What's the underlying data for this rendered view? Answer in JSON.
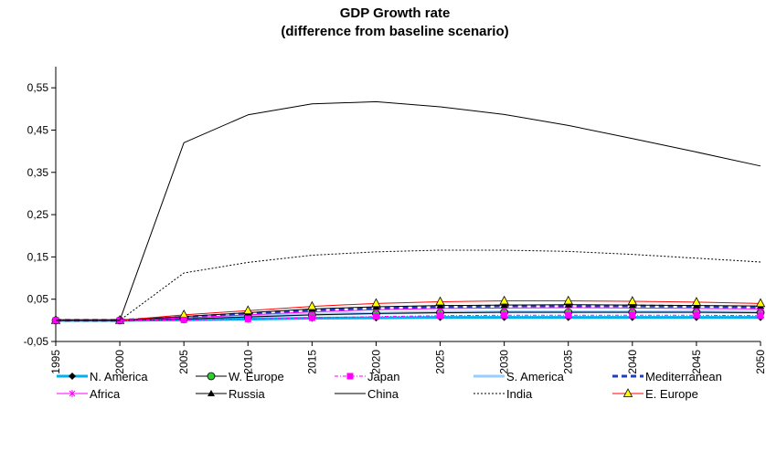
{
  "chart_data": {
    "type": "line",
    "title": "GDP Growth rate",
    "subtitle": "(difference from baseline scenario)",
    "x": [
      "1995",
      "2000",
      "2005",
      "2010",
      "2015",
      "2020",
      "2025",
      "2030",
      "2035",
      "2040",
      "2045",
      "2050"
    ],
    "ylim": [
      -0.05,
      0.6
    ],
    "yticks": [
      -0.05,
      0.05,
      0.15,
      0.25,
      0.35,
      0.45,
      0.55
    ],
    "ytick_labels": [
      "-0,05",
      "0,05",
      "0,15",
      "0,25",
      "0,35",
      "0,45",
      "0,55"
    ],
    "grid": false,
    "legend_position": "bottom",
    "series": [
      {
        "name": "N. America",
        "color": "#00b0f0",
        "marker": "diamond",
        "dash": "solid",
        "width": 3,
        "values": [
          0,
          0,
          0.001,
          0.003,
          0.005,
          0.006,
          0.007,
          0.007,
          0.007,
          0.007,
          0.007,
          0.007
        ]
      },
      {
        "name": "W. Europe",
        "color": "#000000",
        "marker": "circle-green",
        "dash": "solid",
        "width": 1,
        "values": [
          0,
          0,
          0.003,
          0.008,
          0.013,
          0.016,
          0.018,
          0.019,
          0.019,
          0.019,
          0.019,
          0.018
        ]
      },
      {
        "name": "Japan",
        "color": "#ff00ff",
        "marker": "square",
        "dash": "dashdot",
        "width": 1,
        "values": [
          0,
          0,
          0.001,
          0.003,
          0.006,
          0.009,
          0.011,
          0.012,
          0.012,
          0.012,
          0.012,
          0.011
        ]
      },
      {
        "name": "S. America",
        "color": "#99ccff",
        "marker": "none",
        "dash": "solid",
        "width": 3,
        "values": [
          0,
          0,
          0.004,
          0.009,
          0.014,
          0.017,
          0.019,
          0.02,
          0.02,
          0.02,
          0.02,
          0.019
        ]
      },
      {
        "name": "Mediterranean",
        "color": "#1f3fbf",
        "marker": "none",
        "dash": "dash",
        "width": 3,
        "values": [
          0,
          0,
          0.007,
          0.016,
          0.024,
          0.029,
          0.032,
          0.034,
          0.034,
          0.034,
          0.033,
          0.031
        ]
      },
      {
        "name": "Africa",
        "color": "#ff00ff",
        "marker": "star",
        "dash": "solid",
        "width": 1,
        "values": [
          0,
          0,
          0.006,
          0.013,
          0.02,
          0.025,
          0.028,
          0.029,
          0.03,
          0.029,
          0.028,
          0.027
        ]
      },
      {
        "name": "Russia",
        "color": "#000000",
        "marker": "triangle-black",
        "dash": "solid",
        "width": 1,
        "values": [
          0,
          0,
          0.009,
          0.018,
          0.027,
          0.032,
          0.035,
          0.036,
          0.037,
          0.036,
          0.035,
          0.034
        ]
      },
      {
        "name": "China",
        "color": "#000000",
        "marker": "none",
        "dash": "solid",
        "width": 1,
        "values": [
          0,
          0,
          0.42,
          0.486,
          0.512,
          0.517,
          0.505,
          0.487,
          0.461,
          0.43,
          0.398,
          0.365
        ]
      },
      {
        "name": "India",
        "color": "#000000",
        "marker": "none",
        "dash": "dot",
        "width": 1,
        "values": [
          0,
          0,
          0.112,
          0.137,
          0.154,
          0.162,
          0.166,
          0.166,
          0.163,
          0.156,
          0.147,
          0.138
        ]
      },
      {
        "name": "E. Europe",
        "color": "#ff0000",
        "marker": "triangle-yellow",
        "dash": "solid",
        "width": 1,
        "values": [
          0,
          0,
          0.013,
          0.023,
          0.033,
          0.04,
          0.044,
          0.046,
          0.046,
          0.045,
          0.043,
          0.04
        ]
      }
    ]
  }
}
